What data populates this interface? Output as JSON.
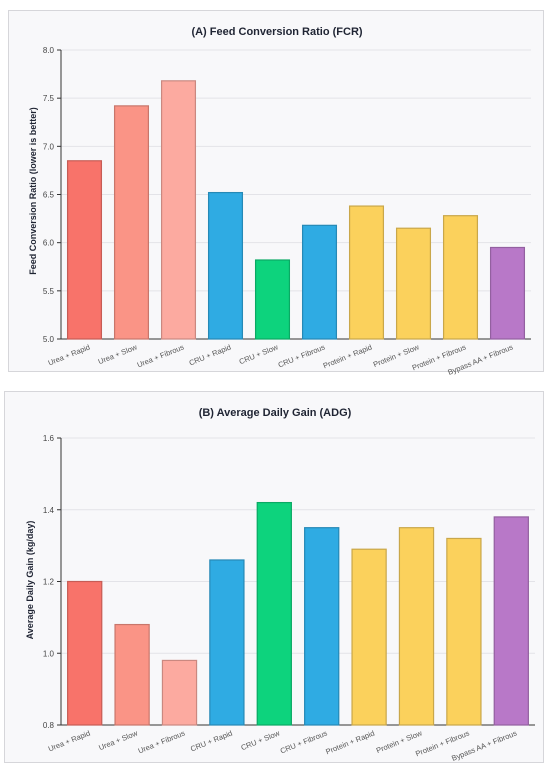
{
  "chart_data": [
    {
      "type": "bar",
      "title": "(A) Feed Conversion Ratio (FCR)",
      "ylabel": "Feed Conversion Ratio (lower is better)",
      "xlabel": "",
      "ylim": [
        5.0,
        8.0
      ],
      "yticks": [
        "5.0",
        "5.5",
        "6.0",
        "6.5",
        "7.0",
        "7.5",
        "8.0"
      ],
      "grid": true,
      "categories": [
        "Urea + Rapid",
        "Urea + Slow",
        "Urea + Fibrous",
        "CRU + Rapid",
        "CRU + Slow",
        "CRU + Fibrous",
        "Protein + Rapid",
        "Protein + Slow",
        "Protein + Fibrous",
        "Bypass AA + Fibrous"
      ],
      "values": [
        6.85,
        7.42,
        7.68,
        6.52,
        5.82,
        6.18,
        6.38,
        6.15,
        6.28,
        5.95
      ],
      "colors": [
        "#f8736a",
        "#fa9486",
        "#fcaaa0",
        "#2fabe3",
        "#0dd37d",
        "#2fabe3",
        "#fbd15c",
        "#fbd15c",
        "#fbd15c",
        "#b878c8"
      ]
    },
    {
      "type": "bar",
      "title": "(B) Average Daily Gain (ADG)",
      "ylabel": "Average Daily Gain (kg/day)",
      "xlabel": "",
      "ylim": [
        0.8,
        1.6
      ],
      "yticks": [
        "0.8",
        "1.0",
        "1.2",
        "1.4",
        "1.6"
      ],
      "grid": true,
      "categories": [
        "Urea + Rapid",
        "Urea + Slow",
        "Urea + Fibrous",
        "CRU + Rapid",
        "CRU + Slow",
        "CRU + Fibrous",
        "Protein + Rapid",
        "Protein + Slow",
        "Protein + Fibrous",
        "Bypass AA + Fibrous"
      ],
      "values": [
        1.2,
        1.08,
        0.98,
        1.26,
        1.42,
        1.35,
        1.29,
        1.35,
        1.32,
        1.38
      ],
      "colors": [
        "#f8736a",
        "#fa9486",
        "#fcaaa0",
        "#2fabe3",
        "#0dd37d",
        "#2fabe3",
        "#fbd15c",
        "#fbd15c",
        "#fbd15c",
        "#b878c8"
      ]
    }
  ]
}
